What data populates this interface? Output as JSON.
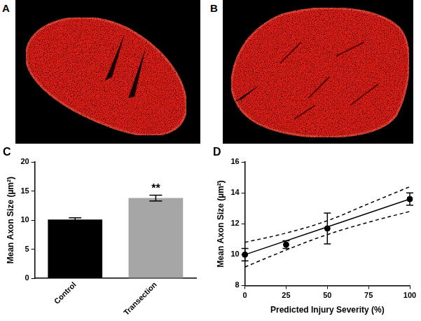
{
  "images": [
    {
      "label": "A"
    },
    {
      "label": "B"
    }
  ],
  "chart_data": [
    {
      "type": "bar",
      "title": "C",
      "categories": [
        "Control",
        "Transection"
      ],
      "values": [
        10.1,
        13.8
      ],
      "errors": [
        0.3,
        0.5
      ],
      "colors": [
        "#000000",
        "#a6a6a6"
      ],
      "y_label": "Mean Axon Size (µm²)",
      "ylim": [
        0,
        20
      ],
      "yticks": [
        0,
        5,
        10,
        15,
        20
      ],
      "grid": false,
      "annotations": [
        {
          "text": "**",
          "x": "Transection"
        }
      ]
    },
    {
      "type": "scatter",
      "title": "D",
      "x_label": "Predicted Injury Severity (%)",
      "y_label": "Mean Axon Size (µm²)",
      "xlim": [
        0,
        100
      ],
      "xticks": [
        0,
        25,
        50,
        75,
        100
      ],
      "ylim": [
        8,
        16
      ],
      "yticks": [
        8,
        10,
        12,
        14,
        16
      ],
      "grid": false,
      "series": [
        {
          "type": "scatter",
          "marker": "circle",
          "color": "#000000",
          "x": [
            0,
            25,
            50,
            100
          ],
          "values": [
            10.0,
            10.65,
            11.7,
            13.6
          ],
          "errors": [
            0.4,
            0.25,
            1.0,
            0.4
          ]
        },
        {
          "type": "line",
          "line_style": "solid",
          "color": "#000000",
          "x": [
            0,
            100
          ],
          "values": [
            10.0,
            13.6
          ]
        },
        {
          "type": "line",
          "line_style": "dashed",
          "color": "#000000",
          "x": [
            0,
            25,
            50,
            75,
            100
          ],
          "values": [
            10.8,
            11.4,
            12.2,
            13.3,
            14.4
          ]
        },
        {
          "type": "line",
          "line_style": "dashed",
          "color": "#000000",
          "x": [
            0,
            25,
            50,
            75,
            100
          ],
          "values": [
            9.2,
            10.3,
            11.3,
            12.1,
            12.8
          ]
        }
      ]
    }
  ]
}
